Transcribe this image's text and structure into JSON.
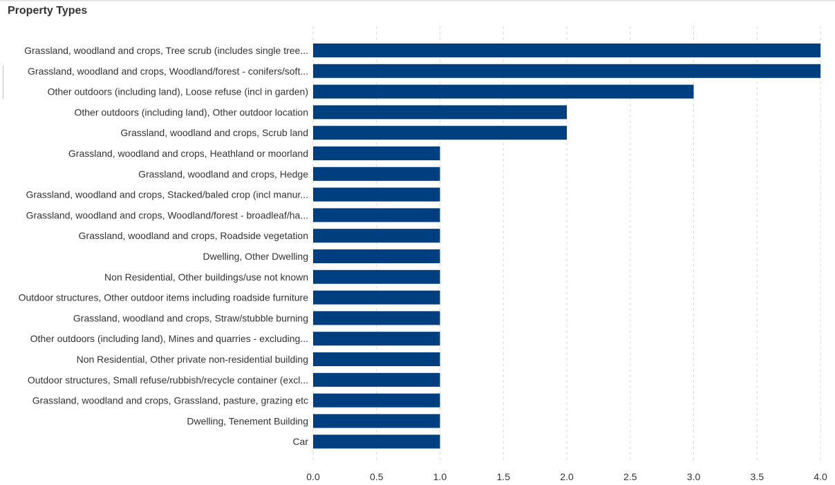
{
  "title": "Property Types",
  "chart_data": {
    "type": "bar",
    "orientation": "horizontal",
    "categories": [
      "Grassland, woodland and crops, Tree scrub (includes single tree...",
      "Grassland, woodland and crops, Woodland/forest - conifers/soft...",
      "Other outdoors (including land), Loose refuse (incl in garden)",
      "Other outdoors (including land), Other outdoor location",
      "Grassland, woodland and crops, Scrub land",
      "Grassland, woodland and crops, Heathland or moorland",
      "Grassland, woodland and crops, Hedge",
      "Grassland, woodland and crops, Stacked/baled crop (incl manur...",
      "Grassland, woodland and crops, Woodland/forest - broadleaf/ha...",
      "Grassland, woodland and crops, Roadside vegetation",
      "Dwelling, Other Dwelling",
      "Non Residential, Other buildings/use not known",
      "Outdoor structures, Other outdoor items including roadside furniture",
      "Grassland, woodland and crops, Straw/stubble burning",
      "Other outdoors (including land), Mines and quarries - excluding...",
      "Non Residential, Other private non-residential building",
      "Outdoor structures, Small refuse/rubbish/recycle container (excl...",
      "Grassland, woodland and crops, Grassland, pasture, grazing etc",
      "Dwelling, Tenement Building",
      "Car"
    ],
    "values": [
      4,
      4,
      3,
      2,
      2,
      1,
      1,
      1,
      1,
      1,
      1,
      1,
      1,
      1,
      1,
      1,
      1,
      1,
      1,
      1
    ],
    "xlim": [
      0,
      4
    ],
    "xticks": [
      "0.0",
      "0.5",
      "1.0",
      "1.5",
      "2.0",
      "2.5",
      "3.0",
      "3.5",
      "4.0"
    ],
    "xtick_values": [
      0,
      0.5,
      1,
      1.5,
      2,
      2.5,
      3,
      3.5,
      4
    ],
    "grid": "vertical-dashed",
    "bar_color": "#003f7f",
    "grid_color": "#d9d9d9"
  }
}
